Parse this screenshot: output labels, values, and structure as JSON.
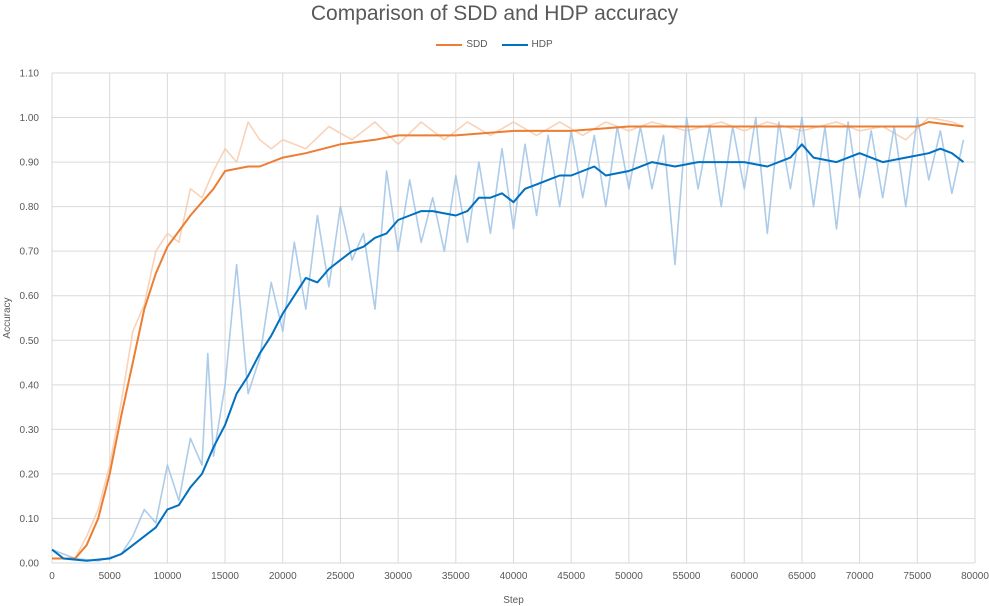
{
  "chart_data": {
    "type": "line",
    "title": "Comparison of SDD and HDP accuracy",
    "xlabel": "Step",
    "ylabel": "Accuracy",
    "xlim": [
      0,
      80000
    ],
    "ylim": [
      0,
      1.1
    ],
    "x_ticks": [
      "0",
      "5000",
      "10000",
      "15000",
      "20000",
      "25000",
      "30000",
      "35000",
      "40000",
      "45000",
      "50000",
      "55000",
      "60000",
      "65000",
      "70000",
      "75000",
      "80000"
    ],
    "y_ticks": [
      "0.00",
      "0.10",
      "0.20",
      "0.30",
      "0.40",
      "0.50",
      "0.60",
      "0.70",
      "0.80",
      "0.90",
      "1.00",
      "1.10"
    ],
    "grid": "horizontal and vertical",
    "legend_position": "top",
    "series": [
      {
        "name": "SDD",
        "color": "#ED7D31",
        "raw_color": "#F8CBAD",
        "smoothed": [
          [
            0,
            0.01
          ],
          [
            2000,
            0.01
          ],
          [
            3000,
            0.04
          ],
          [
            4000,
            0.1
          ],
          [
            5000,
            0.2
          ],
          [
            6000,
            0.33
          ],
          [
            7000,
            0.45
          ],
          [
            8000,
            0.57
          ],
          [
            9000,
            0.65
          ],
          [
            10000,
            0.71
          ],
          [
            12000,
            0.78
          ],
          [
            14000,
            0.84
          ],
          [
            15000,
            0.88
          ],
          [
            17000,
            0.89
          ],
          [
            18000,
            0.89
          ],
          [
            20000,
            0.91
          ],
          [
            22000,
            0.92
          ],
          [
            25000,
            0.94
          ],
          [
            28000,
            0.95
          ],
          [
            30000,
            0.96
          ],
          [
            35000,
            0.96
          ],
          [
            40000,
            0.97
          ],
          [
            45000,
            0.97
          ],
          [
            50000,
            0.98
          ],
          [
            55000,
            0.98
          ],
          [
            60000,
            0.98
          ],
          [
            65000,
            0.98
          ],
          [
            70000,
            0.98
          ],
          [
            75000,
            0.98
          ],
          [
            76000,
            0.99
          ],
          [
            79000,
            0.98
          ]
        ],
        "raw": [
          [
            0,
            0.01
          ],
          [
            2000,
            0.01
          ],
          [
            3000,
            0.06
          ],
          [
            4000,
            0.12
          ],
          [
            5000,
            0.22
          ],
          [
            6000,
            0.36
          ],
          [
            7000,
            0.52
          ],
          [
            8000,
            0.58
          ],
          [
            9000,
            0.7
          ],
          [
            10000,
            0.74
          ],
          [
            11000,
            0.72
          ],
          [
            12000,
            0.84
          ],
          [
            13000,
            0.82
          ],
          [
            14000,
            0.88
          ],
          [
            15000,
            0.93
          ],
          [
            16000,
            0.9
          ],
          [
            17000,
            0.99
          ],
          [
            18000,
            0.95
          ],
          [
            19000,
            0.93
          ],
          [
            20000,
            0.95
          ],
          [
            22000,
            0.93
          ],
          [
            24000,
            0.98
          ],
          [
            26000,
            0.95
          ],
          [
            28000,
            0.99
          ],
          [
            30000,
            0.94
          ],
          [
            32000,
            0.99
          ],
          [
            34000,
            0.95
          ],
          [
            36000,
            0.99
          ],
          [
            38000,
            0.96
          ],
          [
            40000,
            0.99
          ],
          [
            42000,
            0.96
          ],
          [
            44000,
            0.99
          ],
          [
            46000,
            0.96
          ],
          [
            48000,
            0.99
          ],
          [
            50000,
            0.97
          ],
          [
            52000,
            0.99
          ],
          [
            55000,
            0.97
          ],
          [
            58000,
            0.99
          ],
          [
            60000,
            0.97
          ],
          [
            62000,
            0.99
          ],
          [
            65000,
            0.97
          ],
          [
            68000,
            0.99
          ],
          [
            70000,
            0.97
          ],
          [
            72000,
            0.98
          ],
          [
            74000,
            0.95
          ],
          [
            76000,
            1.0
          ],
          [
            78000,
            0.99
          ],
          [
            79000,
            0.98
          ]
        ]
      },
      {
        "name": "HDP",
        "color": "#0070C0",
        "raw_color": "#9DC3E6",
        "smoothed": [
          [
            0,
            0.03
          ],
          [
            1000,
            0.01
          ],
          [
            3000,
            0.005
          ],
          [
            5000,
            0.01
          ],
          [
            6000,
            0.02
          ],
          [
            7000,
            0.04
          ],
          [
            8000,
            0.06
          ],
          [
            9000,
            0.08
          ],
          [
            10000,
            0.12
          ],
          [
            11000,
            0.13
          ],
          [
            12000,
            0.17
          ],
          [
            13000,
            0.2
          ],
          [
            14000,
            0.26
          ],
          [
            15000,
            0.31
          ],
          [
            16000,
            0.38
          ],
          [
            17000,
            0.42
          ],
          [
            18000,
            0.47
          ],
          [
            19000,
            0.51
          ],
          [
            20000,
            0.56
          ],
          [
            21000,
            0.6
          ],
          [
            22000,
            0.64
          ],
          [
            23000,
            0.63
          ],
          [
            24000,
            0.66
          ],
          [
            25000,
            0.68
          ],
          [
            26000,
            0.7
          ],
          [
            27000,
            0.71
          ],
          [
            28000,
            0.73
          ],
          [
            29000,
            0.74
          ],
          [
            30000,
            0.77
          ],
          [
            31000,
            0.78
          ],
          [
            32000,
            0.79
          ],
          [
            33000,
            0.79
          ],
          [
            35000,
            0.78
          ],
          [
            36000,
            0.79
          ],
          [
            37000,
            0.82
          ],
          [
            38000,
            0.82
          ],
          [
            39000,
            0.83
          ],
          [
            40000,
            0.81
          ],
          [
            41000,
            0.84
          ],
          [
            42000,
            0.85
          ],
          [
            43000,
            0.86
          ],
          [
            44000,
            0.87
          ],
          [
            45000,
            0.87
          ],
          [
            46000,
            0.88
          ],
          [
            47000,
            0.89
          ],
          [
            48000,
            0.87
          ],
          [
            50000,
            0.88
          ],
          [
            52000,
            0.9
          ],
          [
            54000,
            0.89
          ],
          [
            56000,
            0.9
          ],
          [
            58000,
            0.9
          ],
          [
            60000,
            0.9
          ],
          [
            62000,
            0.89
          ],
          [
            64000,
            0.91
          ],
          [
            65000,
            0.94
          ],
          [
            66000,
            0.91
          ],
          [
            68000,
            0.9
          ],
          [
            70000,
            0.92
          ],
          [
            72000,
            0.9
          ],
          [
            74000,
            0.91
          ],
          [
            76000,
            0.92
          ],
          [
            77000,
            0.93
          ],
          [
            78000,
            0.92
          ],
          [
            79000,
            0.9
          ]
        ],
        "raw": [
          [
            0,
            0.03
          ],
          [
            2000,
            0.01
          ],
          [
            4000,
            0.005
          ],
          [
            6000,
            0.02
          ],
          [
            7000,
            0.06
          ],
          [
            8000,
            0.12
          ],
          [
            9000,
            0.09
          ],
          [
            10000,
            0.22
          ],
          [
            11000,
            0.14
          ],
          [
            12000,
            0.28
          ],
          [
            13000,
            0.22
          ],
          [
            13500,
            0.47
          ],
          [
            14000,
            0.24
          ],
          [
            15000,
            0.4
          ],
          [
            16000,
            0.67
          ],
          [
            17000,
            0.38
          ],
          [
            18000,
            0.46
          ],
          [
            19000,
            0.63
          ],
          [
            20000,
            0.52
          ],
          [
            21000,
            0.72
          ],
          [
            22000,
            0.57
          ],
          [
            23000,
            0.78
          ],
          [
            24000,
            0.62
          ],
          [
            25000,
            0.8
          ],
          [
            26000,
            0.68
          ],
          [
            27000,
            0.74
          ],
          [
            28000,
            0.57
          ],
          [
            29000,
            0.88
          ],
          [
            30000,
            0.7
          ],
          [
            31000,
            0.86
          ],
          [
            32000,
            0.72
          ],
          [
            33000,
            0.82
          ],
          [
            34000,
            0.7
          ],
          [
            35000,
            0.87
          ],
          [
            36000,
            0.72
          ],
          [
            37000,
            0.9
          ],
          [
            38000,
            0.74
          ],
          [
            39000,
            0.93
          ],
          [
            40000,
            0.75
          ],
          [
            41000,
            0.94
          ],
          [
            42000,
            0.78
          ],
          [
            43000,
            0.96
          ],
          [
            44000,
            0.8
          ],
          [
            45000,
            0.97
          ],
          [
            46000,
            0.82
          ],
          [
            47000,
            0.96
          ],
          [
            48000,
            0.8
          ],
          [
            49000,
            0.98
          ],
          [
            50000,
            0.84
          ],
          [
            51000,
            0.98
          ],
          [
            52000,
            0.84
          ],
          [
            53000,
            0.96
          ],
          [
            54000,
            0.67
          ],
          [
            55000,
            1.0
          ],
          [
            56000,
            0.84
          ],
          [
            57000,
            0.98
          ],
          [
            58000,
            0.8
          ],
          [
            59000,
            0.98
          ],
          [
            60000,
            0.84
          ],
          [
            61000,
            1.0
          ],
          [
            62000,
            0.74
          ],
          [
            63000,
            0.99
          ],
          [
            64000,
            0.84
          ],
          [
            65000,
            1.0
          ],
          [
            66000,
            0.8
          ],
          [
            67000,
            0.98
          ],
          [
            68000,
            0.75
          ],
          [
            69000,
            0.99
          ],
          [
            70000,
            0.82
          ],
          [
            71000,
            0.97
          ],
          [
            72000,
            0.82
          ],
          [
            73000,
            0.98
          ],
          [
            74000,
            0.8
          ],
          [
            75000,
            1.0
          ],
          [
            76000,
            0.86
          ],
          [
            77000,
            0.97
          ],
          [
            78000,
            0.83
          ],
          [
            79000,
            0.95
          ]
        ]
      }
    ]
  }
}
